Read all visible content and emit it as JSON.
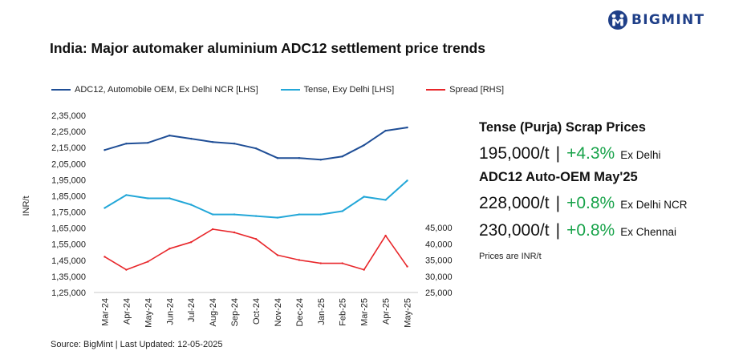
{
  "brand": {
    "name": "BIGMINT",
    "logo_icon": "bigmint-logo-icon",
    "color": "#1f3f88"
  },
  "title": "India: Major automaker aluminium ADC12 settlement price trends",
  "source": "Source: BigMint | Last Updated: 12-05-2025",
  "chart_data": {
    "type": "line",
    "title": "India: Major automaker aluminium ADC12 settlement price trends",
    "categories": [
      "Mar-24",
      "Apr-24",
      "May-24",
      "Jun-24",
      "Jul-24",
      "Aug-24",
      "Sep-24",
      "Oct-24",
      "Nov-24",
      "Dec-24",
      "Jan-25",
      "Feb-25",
      "Mar-25",
      "Apr-25",
      "May-25"
    ],
    "ylabel": "INR/t",
    "y_left": {
      "min": 125000,
      "max": 235000,
      "step": 10000,
      "tick_labels": [
        "1,25,000",
        "1,35,000",
        "1,45,000",
        "1,55,000",
        "1,65,000",
        "1,75,000",
        "1,85,000",
        "1,95,000",
        "2,05,000",
        "2,15,000",
        "2,25,000",
        "2,35,000"
      ]
    },
    "y_right": {
      "min": 25000,
      "max": 45000,
      "step": 5000,
      "tick_labels": [
        "25,000",
        "30,000",
        "35,000",
        "40,000",
        "45,000"
      ]
    },
    "grid": false,
    "legend_position": "top",
    "series": [
      {
        "name": "ADC12, Automobile OEM, Ex Delhi NCR [LHS]",
        "axis": "left",
        "color": "#1f4e96",
        "values": [
          213500,
          217500,
          218000,
          222500,
          220500,
          218500,
          217500,
          214500,
          208500,
          208500,
          207500,
          209500,
          216500,
          225500,
          227500
        ]
      },
      {
        "name": "Tense, Exy Delhi [LHS]",
        "axis": "left",
        "color": "#23a7d8",
        "values": [
          177500,
          185500,
          183500,
          183500,
          179500,
          173500,
          173500,
          172500,
          171500,
          173500,
          173500,
          175500,
          184500,
          182500,
          194500
        ]
      },
      {
        "name": "Spread [RHS]",
        "axis": "right",
        "color": "#e8262a",
        "values": [
          36000,
          32000,
          34500,
          38500,
          40500,
          44500,
          43500,
          41500,
          36500,
          35000,
          34000,
          34000,
          32000,
          42500,
          33000
        ]
      }
    ]
  },
  "panel": {
    "heading1": "Tense (Purja) Scrap Prices",
    "rows1": [
      {
        "price": "195,000/t",
        "sep": "|",
        "change": "+4.3%",
        "location": "Ex Delhi"
      }
    ],
    "heading2": "ADC12 Auto-OEM May'25",
    "rows2": [
      {
        "price": "228,000/t",
        "sep": "|",
        "change": "+0.8%",
        "location": "Ex Delhi NCR"
      },
      {
        "price": "230,000/t",
        "sep": "|",
        "change": "+0.8%",
        "location": "Ex Chennai"
      }
    ],
    "note": "Prices are INR/t",
    "change_color": "#18a34a"
  }
}
